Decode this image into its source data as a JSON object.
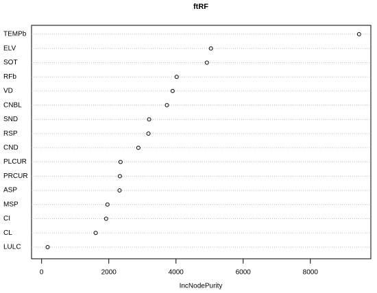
{
  "chart_data": {
    "type": "dot",
    "title": "ftRF",
    "x_label": "IncNodePurity",
    "categories": [
      "TEMPb",
      "ELV",
      "SOT",
      "RFb",
      "VD",
      "CNBL",
      "SND",
      "RSP",
      "CND",
      "PLCUR",
      "PRCUR",
      "ASP",
      "MSP",
      "CI",
      "CL",
      "LULC"
    ],
    "values": [
      9450,
      5040,
      4920,
      4020,
      3900,
      3730,
      3200,
      3180,
      2880,
      2350,
      2330,
      2320,
      1960,
      1920,
      1610,
      180
    ],
    "color": "#000000",
    "xlim": [
      -300,
      9800
    ],
    "xticks": [
      0,
      2000,
      4000,
      6000,
      8000
    ],
    "grid": true
  }
}
